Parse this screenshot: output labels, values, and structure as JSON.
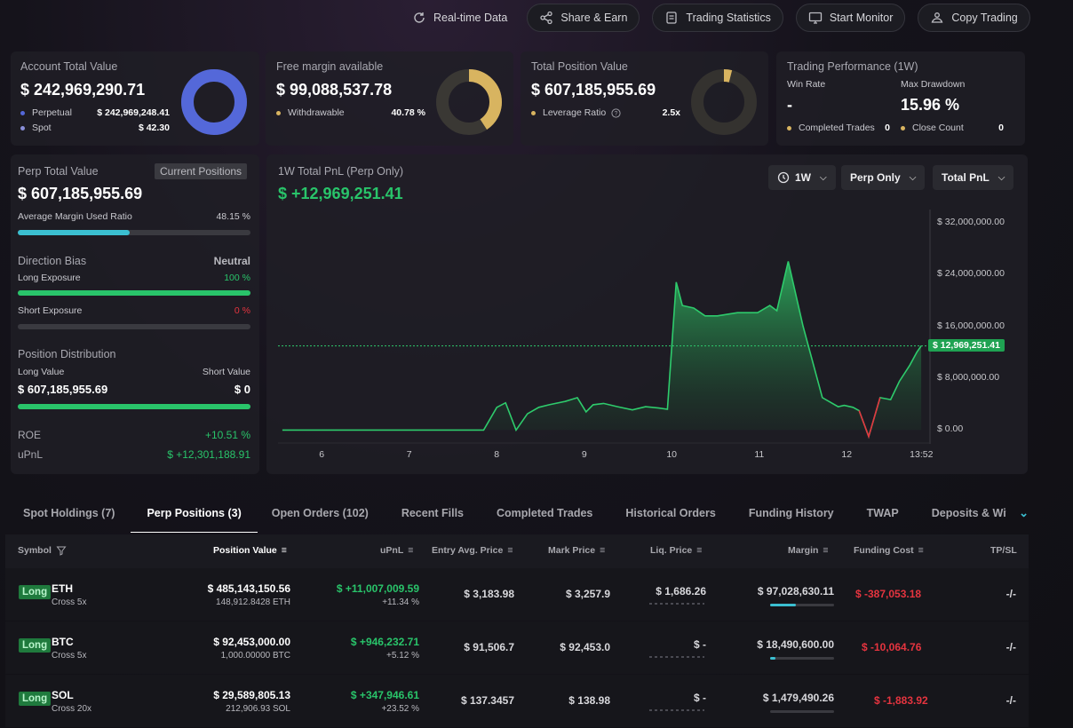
{
  "toolbar": {
    "realtime": "Real-time Data",
    "share": "Share & Earn",
    "stats": "Trading Statistics",
    "monitor": "Start Monitor",
    "copy": "Copy Trading"
  },
  "account": {
    "title": "Account Total Value",
    "value": "$ 242,969,290.71",
    "perp_label": "Perpetual",
    "perp_value": "$ 242,969,248.41",
    "spot_label": "Spot",
    "spot_value": "$ 42.30",
    "perp_fraction": 0.9999
  },
  "margin": {
    "title": "Free margin available",
    "value": "$ 99,088,537.78",
    "withdraw_label": "Withdrawable",
    "withdraw_value": "40.78 %",
    "fraction": 0.4078
  },
  "position": {
    "title": "Total Position Value",
    "value": "$ 607,185,955.69",
    "leverage_label": "Leverage Ratio",
    "leverage_value": "2.5x",
    "fraction": 0.04
  },
  "performance": {
    "title": "Trading Performance (1W)",
    "win_rate_label": "Win Rate",
    "win_rate": "-",
    "drawdown_label": "Max Drawdown",
    "drawdown": "15.96 %",
    "completed_label": "Completed Trades",
    "completed": "0",
    "close_label": "Close Count",
    "close": "0"
  },
  "perp": {
    "title": "Perp Total Value",
    "current_positions": "Current Positions",
    "value": "$ 607,185,955.69",
    "avg_margin_label": "Average Margin Used Ratio",
    "avg_margin_value": "48.15 %",
    "avg_margin_fraction": 0.4815,
    "bias_label": "Direction Bias",
    "bias_value": "Neutral",
    "long_exposure_label": "Long Exposure",
    "long_exposure_value": "100 %",
    "long_exposure_fraction": 1.0,
    "short_exposure_label": "Short Exposure",
    "short_exposure_value": "0 %",
    "short_exposure_fraction": 0.0,
    "distribution_label": "Position Distribution",
    "long_value_label": "Long Value",
    "short_value_label": "Short Value",
    "long_value": "$ 607,185,955.69",
    "short_value": "$ 0",
    "distribution_fraction": 1.0,
    "roe_label": "ROE",
    "roe_value": "+10.51 %",
    "upnl_label": "uPnL",
    "upnl_value": "$ +12,301,188.91"
  },
  "pnl": {
    "title": "1W Total PnL (Perp Only)",
    "value": "$ +12,969,251.41",
    "period": "1W",
    "scope": "Perp Only",
    "metric": "Total PnL",
    "current_label": "$ 12,969,251.41"
  },
  "chart_data": {
    "type": "area",
    "title": "1W Total PnL (Perp Only)",
    "xlabel": "",
    "ylabel": "",
    "y_ticks": [
      "$ 32,000,000.00",
      "$ 24,000,000.00",
      "$ 16,000,000.00",
      "$ 8,000,000.00",
      "$ 0.00"
    ],
    "y_tick_values": [
      32000000,
      24000000,
      16000000,
      8000000,
      0
    ],
    "x_ticks": [
      "6",
      "7",
      "8",
      "9",
      "10",
      "11",
      "12",
      "13:52"
    ],
    "x_tick_values": [
      6,
      7,
      8,
      9,
      10,
      11,
      12,
      12.85
    ],
    "ylim": [
      -2000000,
      34000000
    ],
    "xlim": [
      5.5,
      12.95
    ],
    "current_value": 12969251.41,
    "series": [
      {
        "name": "Total PnL",
        "x": [
          5.55,
          6.5,
          7.3,
          7.85,
          8.0,
          8.1,
          8.22,
          8.35,
          8.48,
          8.6,
          8.78,
          8.92,
          9.02,
          9.1,
          9.22,
          9.38,
          9.55,
          9.7,
          9.85,
          9.95,
          10.05,
          10.12,
          10.25,
          10.38,
          10.52,
          10.75,
          10.98,
          11.12,
          11.2,
          11.33,
          11.5,
          11.72,
          11.9,
          11.97,
          12.07,
          12.14,
          12.25,
          12.38,
          12.5,
          12.6,
          12.72,
          12.8,
          12.85
        ],
        "values": [
          0,
          0,
          0,
          0,
          3500000,
          4200000,
          0,
          2500000,
          3500000,
          3900000,
          4400000,
          5000000,
          2800000,
          3900000,
          4100000,
          3600000,
          3100000,
          3600000,
          3400000,
          3200000,
          22800000,
          19200000,
          18800000,
          17600000,
          17600000,
          18100000,
          18100000,
          19200000,
          18400000,
          26000000,
          16000000,
          5000000,
          3600000,
          3800000,
          3500000,
          3000000,
          -1000000,
          5000000,
          4700000,
          7500000,
          10000000,
          12000000,
          12969251.41
        ]
      }
    ]
  },
  "tabs": [
    {
      "label": "Spot Holdings (7)"
    },
    {
      "label": "Perp Positions (3)"
    },
    {
      "label": "Open Orders (102)"
    },
    {
      "label": "Recent Fills"
    },
    {
      "label": "Completed Trades"
    },
    {
      "label": "Historical Orders"
    },
    {
      "label": "Funding History"
    },
    {
      "label": "TWAP"
    },
    {
      "label": "Deposits & Withdr"
    }
  ],
  "table": {
    "headers": {
      "symbol": "Symbol",
      "position_value": "Position Value",
      "upnl": "uPnL",
      "entry": "Entry Avg. Price",
      "mark": "Mark Price",
      "liq": "Liq. Price",
      "margin": "Margin",
      "funding": "Funding Cost",
      "tpsl": "TP/SL"
    },
    "rows": [
      {
        "side": "Long",
        "symbol": "ETH",
        "mode": "Cross 5x",
        "position_value": "$ 485,143,150.56",
        "size": "148,912.8428 ETH",
        "upnl": "$ +11,007,009.59",
        "upnl_pct": "+11.34 %",
        "entry": "$ 3,183.98",
        "mark": "$ 3,257.9",
        "liq": "$ 1,686.26",
        "margin": "$ 97,028,630.11",
        "margin_fraction": 0.4,
        "funding": "$ -387,053.18",
        "tpsl": "-/-"
      },
      {
        "side": "Long",
        "symbol": "BTC",
        "mode": "Cross 5x",
        "position_value": "$ 92,453,000.00",
        "size": "1,000.00000 BTC",
        "upnl": "$ +946,232.71",
        "upnl_pct": "+5.12 %",
        "entry": "$ 91,506.7",
        "mark": "$ 92,453.0",
        "liq": "$ -",
        "margin": "$ 18,490,600.00",
        "margin_fraction": 0.08,
        "funding": "$ -10,064.76",
        "tpsl": "-/-"
      },
      {
        "side": "Long",
        "symbol": "SOL",
        "mode": "Cross 20x",
        "position_value": "$ 29,589,805.13",
        "size": "212,906.93 SOL",
        "upnl": "$ +347,946.61",
        "upnl_pct": "+23.52 %",
        "entry": "$ 137.3457",
        "mark": "$ 138.98",
        "liq": "$ -",
        "margin": "$ 1,479,490.26",
        "margin_fraction": 0.0,
        "funding": "$ -1,883.92",
        "tpsl": "-/-"
      }
    ]
  },
  "colors": {
    "green": "#29c46a",
    "red": "#e5343f",
    "blue": "#5468d9",
    "gold": "#d8b460",
    "cyan": "#3bbfd1"
  }
}
